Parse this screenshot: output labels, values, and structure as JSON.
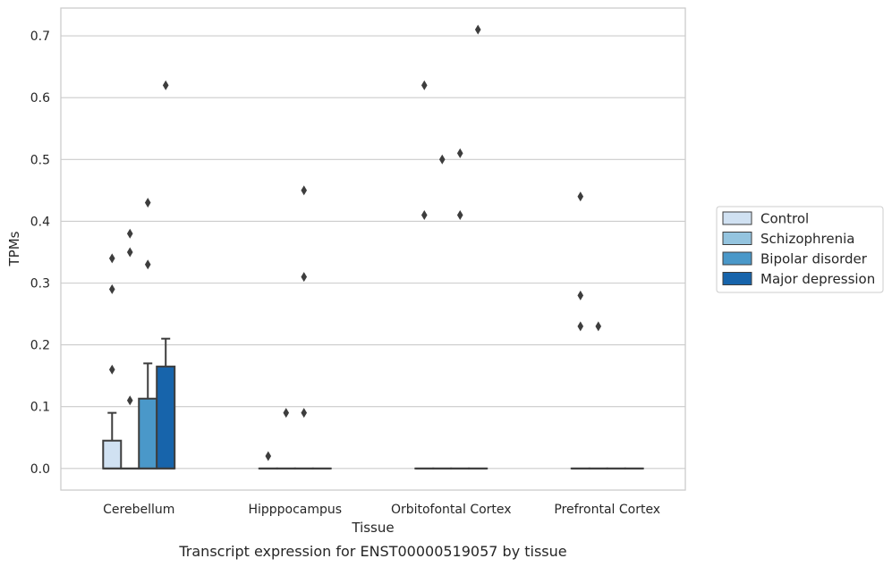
{
  "chart_data": {
    "type": "box",
    "caption": "Transcript expression for ENST00000519057 by tissue",
    "xlabel": "Tissue",
    "ylabel": "TPMs",
    "ylim": [
      -0.035,
      0.745
    ],
    "yticks": [
      0.0,
      0.1,
      0.2,
      0.3,
      0.4,
      0.5,
      0.6,
      0.7
    ],
    "ytick_labels": [
      "0.0",
      "0.1",
      "0.2",
      "0.3",
      "0.4",
      "0.5",
      "0.6",
      "0.7"
    ],
    "grid": "horizontal",
    "legend_placement": "right",
    "categories": [
      "Cerebellum",
      "Hipppocampus",
      "Orbitofontal Cortex",
      "Prefrontal Cortex"
    ],
    "series": [
      {
        "name": "Control",
        "color": "#d0e1f2",
        "boxes": [
          {
            "q1": 0.0,
            "median": 0.0,
            "q3": 0.045,
            "whisker_low": 0.0,
            "whisker_high": 0.09,
            "outliers": [
              0.16,
              0.29,
              0.34
            ]
          },
          {
            "q1": 0.0,
            "median": 0.0,
            "q3": 0.0,
            "whisker_low": 0.0,
            "whisker_high": 0.0,
            "outliers": [
              0.02
            ]
          },
          {
            "q1": 0.0,
            "median": 0.0,
            "q3": 0.0,
            "whisker_low": 0.0,
            "whisker_high": 0.0,
            "outliers": [
              0.41,
              0.62
            ]
          },
          {
            "q1": 0.0,
            "median": 0.0,
            "q3": 0.0,
            "whisker_low": 0.0,
            "whisker_high": 0.0,
            "outliers": [
              0.23,
              0.28,
              0.44
            ]
          }
        ]
      },
      {
        "name": "Schizophrenia",
        "color": "#94c4df",
        "boxes": [
          {
            "q1": 0.0,
            "median": 0.0,
            "q3": 0.0,
            "whisker_low": 0.0,
            "whisker_high": 0.0,
            "outliers": [
              0.11,
              0.35,
              0.38
            ]
          },
          {
            "q1": 0.0,
            "median": 0.0,
            "q3": 0.0,
            "whisker_low": 0.0,
            "whisker_high": 0.0,
            "outliers": [
              0.09
            ]
          },
          {
            "q1": 0.0,
            "median": 0.0,
            "q3": 0.0,
            "whisker_low": 0.0,
            "whisker_high": 0.0,
            "outliers": [
              0.5
            ]
          },
          {
            "q1": 0.0,
            "median": 0.0,
            "q3": 0.0,
            "whisker_low": 0.0,
            "whisker_high": 0.0,
            "outliers": [
              0.23
            ]
          }
        ]
      },
      {
        "name": "Bipolar disorder",
        "color": "#4a98c9",
        "boxes": [
          {
            "q1": 0.0,
            "median": 0.0,
            "q3": 0.113,
            "whisker_low": 0.0,
            "whisker_high": 0.17,
            "outliers": [
              0.33,
              0.43
            ]
          },
          {
            "q1": 0.0,
            "median": 0.0,
            "q3": 0.0,
            "whisker_low": 0.0,
            "whisker_high": 0.0,
            "outliers": [
              0.09,
              0.31,
              0.45
            ]
          },
          {
            "q1": 0.0,
            "median": 0.0,
            "q3": 0.0,
            "whisker_low": 0.0,
            "whisker_high": 0.0,
            "outliers": [
              0.41,
              0.51
            ]
          },
          {
            "q1": 0.0,
            "median": 0.0,
            "q3": 0.0,
            "whisker_low": 0.0,
            "whisker_high": 0.0,
            "outliers": []
          }
        ]
      },
      {
        "name": "Major depression",
        "color": "#1764ab",
        "boxes": [
          {
            "q1": 0.0,
            "median": 0.0,
            "q3": 0.165,
            "whisker_low": 0.0,
            "whisker_high": 0.21,
            "outliers": [
              0.62
            ]
          },
          {
            "q1": 0.0,
            "median": 0.0,
            "q3": 0.0,
            "whisker_low": 0.0,
            "whisker_high": 0.0,
            "outliers": []
          },
          {
            "q1": 0.0,
            "median": 0.0,
            "q3": 0.0,
            "whisker_low": 0.0,
            "whisker_high": 0.0,
            "outliers": [
              0.71
            ]
          },
          {
            "q1": 0.0,
            "median": 0.0,
            "q3": 0.0,
            "whisker_low": 0.0,
            "whisker_high": 0.0,
            "outliers": []
          }
        ]
      }
    ]
  }
}
